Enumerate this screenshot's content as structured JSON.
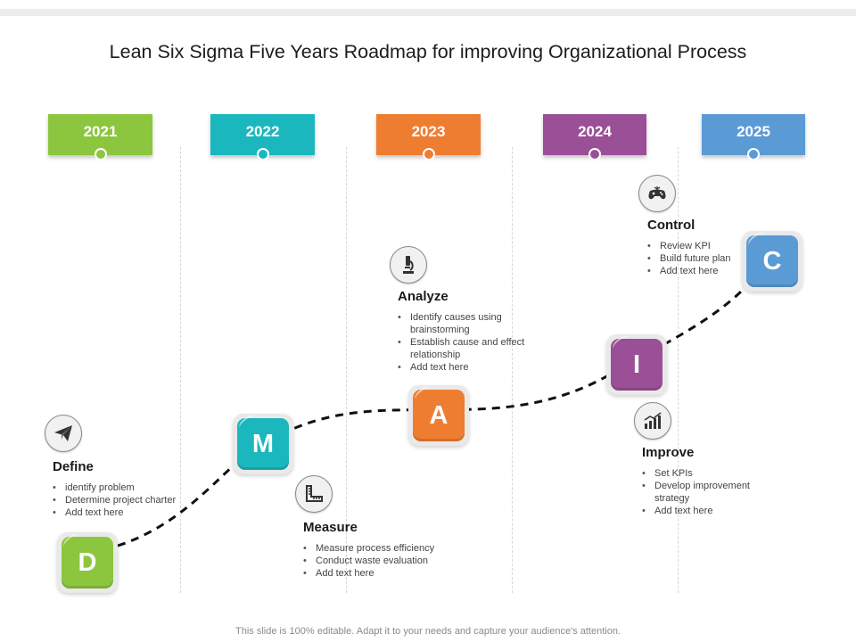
{
  "title": "Lean Six Sigma Five Years Roadmap for improving Organizational Process",
  "years": [
    {
      "label": "2021",
      "color": "#8cc63f"
    },
    {
      "label": "2022",
      "color": "#1bb7be"
    },
    {
      "label": "2023",
      "color": "#ee7d32"
    },
    {
      "label": "2024",
      "color": "#9b4f96"
    },
    {
      "label": "2025",
      "color": "#5b9bd5"
    }
  ],
  "tiles": [
    {
      "letter": "D",
      "color": "#8cc63f"
    },
    {
      "letter": "M",
      "color": "#1bb7be"
    },
    {
      "letter": "A",
      "color": "#ee7d32"
    },
    {
      "letter": "I",
      "color": "#9b4f96"
    },
    {
      "letter": "C",
      "color": "#5b9bd5"
    }
  ],
  "phases": {
    "define": {
      "title": "Define",
      "icon": "paper-plane-icon",
      "items": [
        "identify problem",
        "Determine project charter",
        "Add text here"
      ]
    },
    "measure": {
      "title": "Measure",
      "icon": "ruler-icon",
      "items": [
        "Measure process efficiency",
        "Conduct waste evaluation",
        "Add text here"
      ]
    },
    "analyze": {
      "title": "Analyze",
      "icon": "microscope-icon",
      "items": [
        "Identify causes using brainstorming",
        "Establish cause and effect relationship",
        "Add text here"
      ]
    },
    "improve": {
      "title": "Improve",
      "icon": "growth-chart-icon",
      "items": [
        "Set KPIs",
        "Develop improvement strategy",
        "Add text here"
      ]
    },
    "control": {
      "title": "Control",
      "icon": "gamepad-icon",
      "items": [
        "Review KPI",
        "Build future plan",
        "Add text here"
      ]
    }
  },
  "footer": "This slide is 100% editable. Adapt it to your needs and capture your audience's attention."
}
